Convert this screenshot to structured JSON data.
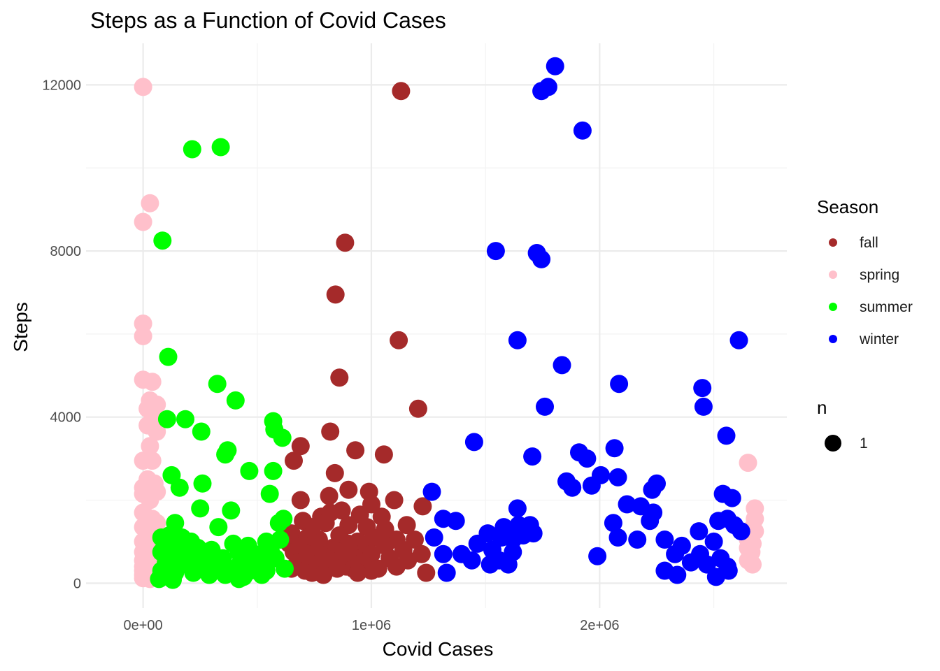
{
  "chart_data": {
    "type": "scatter",
    "title": "Steps as a Function of Covid Cases",
    "xlabel": "Covid Cases",
    "ylabel": "Steps",
    "xlim": [
      -250000,
      2820000
    ],
    "ylim": [
      -600,
      13000
    ],
    "x_ticks": [
      0,
      1000000,
      2000000
    ],
    "x_tick_labels": [
      "0e+00",
      "1e+06",
      "2e+06"
    ],
    "y_ticks": [
      0,
      4000,
      8000,
      12000
    ],
    "y_tick_labels": [
      "0",
      "4000",
      "8000",
      "12000"
    ],
    "grid": true,
    "legend": {
      "position": "right",
      "color_title": "Season",
      "size_title": "n",
      "size_entries": [
        "1"
      ]
    },
    "series": [
      {
        "name": "fall",
        "color": "#A52A2A",
        "points": [
          [
            1130000,
            11850
          ],
          [
            885000,
            8200
          ],
          [
            843000,
            6950
          ],
          [
            860000,
            4950
          ],
          [
            1120000,
            5850
          ],
          [
            1205000,
            4200
          ],
          [
            820000,
            3650
          ],
          [
            690000,
            3300
          ],
          [
            930000,
            3200
          ],
          [
            1055000,
            3100
          ],
          [
            660000,
            2950
          ],
          [
            840000,
            2650
          ],
          [
            815000,
            2100
          ],
          [
            900000,
            2250
          ],
          [
            990000,
            2200
          ],
          [
            1100000,
            2000
          ],
          [
            690000,
            2000
          ],
          [
            1225000,
            1850
          ],
          [
            780000,
            1600
          ],
          [
            820000,
            1700
          ],
          [
            870000,
            1750
          ],
          [
            950000,
            1650
          ],
          [
            1000000,
            1900
          ],
          [
            1045000,
            1600
          ],
          [
            1155000,
            1400
          ],
          [
            700000,
            1500
          ],
          [
            740000,
            1350
          ],
          [
            800000,
            1450
          ],
          [
            900000,
            1400
          ],
          [
            980000,
            1350
          ],
          [
            1060000,
            1300
          ],
          [
            650000,
            1200
          ],
          [
            720000,
            1100
          ],
          [
            770000,
            1050
          ],
          [
            860000,
            1150
          ],
          [
            940000,
            1000
          ],
          [
            1010000,
            1100
          ],
          [
            1110000,
            1050
          ],
          [
            1190000,
            1050
          ],
          [
            640000,
            950
          ],
          [
            700000,
            900
          ],
          [
            760000,
            950
          ],
          [
            830000,
            850
          ],
          [
            900000,
            950
          ],
          [
            980000,
            850
          ],
          [
            1060000,
            900
          ],
          [
            1140000,
            800
          ],
          [
            1220000,
            700
          ],
          [
            660000,
            750
          ],
          [
            720000,
            700
          ],
          [
            790000,
            650
          ],
          [
            860000,
            750
          ],
          [
            930000,
            600
          ],
          [
            1000000,
            700
          ],
          [
            1080000,
            600
          ],
          [
            1160000,
            550
          ],
          [
            680000,
            500
          ],
          [
            750000,
            450
          ],
          [
            820000,
            550
          ],
          [
            890000,
            400
          ],
          [
            960000,
            500
          ],
          [
            1030000,
            350
          ],
          [
            1110000,
            400
          ],
          [
            650000,
            350
          ],
          [
            710000,
            300
          ],
          [
            780000,
            300
          ],
          [
            850000,
            350
          ],
          [
            920000,
            350
          ],
          [
            1000000,
            300
          ],
          [
            1240000,
            250
          ],
          [
            740000,
            250
          ],
          [
            790000,
            200
          ],
          [
            940000,
            250
          ]
        ]
      },
      {
        "name": "spring",
        "color": "#FFC0CB",
        "points": [
          [
            0,
            11950
          ],
          [
            30000,
            9150
          ],
          [
            0,
            8700
          ],
          [
            0,
            6250
          ],
          [
            0,
            5950
          ],
          [
            0,
            4900
          ],
          [
            40000,
            4850
          ],
          [
            30000,
            4400
          ],
          [
            60000,
            4300
          ],
          [
            20000,
            4200
          ],
          [
            50000,
            4000
          ],
          [
            20000,
            3800
          ],
          [
            60000,
            3650
          ],
          [
            30000,
            3300
          ],
          [
            0,
            2950
          ],
          [
            40000,
            2950
          ],
          [
            20000,
            2500
          ],
          [
            50000,
            2400
          ],
          [
            0,
            2300
          ],
          [
            60000,
            2200
          ],
          [
            0,
            2150
          ],
          [
            30000,
            2000
          ],
          [
            0,
            1700
          ],
          [
            40000,
            1550
          ],
          [
            60000,
            1450
          ],
          [
            0,
            1350
          ],
          [
            30000,
            1250
          ],
          [
            50000,
            1100
          ],
          [
            0,
            1000
          ],
          [
            20000,
            900
          ],
          [
            60000,
            850
          ],
          [
            0,
            750
          ],
          [
            40000,
            650
          ],
          [
            0,
            550
          ],
          [
            30000,
            500
          ],
          [
            0,
            400
          ],
          [
            50000,
            400
          ],
          [
            0,
            300
          ],
          [
            20000,
            250
          ],
          [
            0,
            200
          ],
          [
            40000,
            200
          ],
          [
            0,
            120
          ],
          [
            30000,
            100
          ],
          [
            2650000,
            2900
          ],
          [
            2680000,
            1800
          ],
          [
            2680000,
            1550
          ],
          [
            2665000,
            1300
          ],
          [
            2680000,
            1250
          ],
          [
            2650000,
            1050
          ],
          [
            2670000,
            950
          ],
          [
            2650000,
            850
          ],
          [
            2665000,
            750
          ],
          [
            2650000,
            550
          ],
          [
            2670000,
            450
          ]
        ]
      },
      {
        "name": "summer",
        "color": "#00FF00",
        "points": [
          [
            340000,
            10500
          ],
          [
            215000,
            10450
          ],
          [
            85000,
            8250
          ],
          [
            110000,
            5450
          ],
          [
            325000,
            4800
          ],
          [
            405000,
            4400
          ],
          [
            570000,
            3900
          ],
          [
            185000,
            3950
          ],
          [
            105000,
            3950
          ],
          [
            575000,
            3700
          ],
          [
            255000,
            3650
          ],
          [
            610000,
            3500
          ],
          [
            370000,
            3200
          ],
          [
            360000,
            3100
          ],
          [
            125000,
            2600
          ],
          [
            465000,
            2700
          ],
          [
            570000,
            2700
          ],
          [
            160000,
            2300
          ],
          [
            260000,
            2400
          ],
          [
            555000,
            2150
          ],
          [
            250000,
            1800
          ],
          [
            385000,
            1750
          ],
          [
            615000,
            1550
          ],
          [
            595000,
            1450
          ],
          [
            140000,
            1450
          ],
          [
            330000,
            1350
          ],
          [
            80000,
            1100
          ],
          [
            115000,
            1150
          ],
          [
            170000,
            1100
          ],
          [
            210000,
            1000
          ],
          [
            395000,
            950
          ],
          [
            460000,
            900
          ],
          [
            540000,
            1000
          ],
          [
            600000,
            1050
          ],
          [
            130000,
            900
          ],
          [
            180000,
            800
          ],
          [
            240000,
            850
          ],
          [
            300000,
            800
          ],
          [
            420000,
            750
          ],
          [
            490000,
            700
          ],
          [
            560000,
            750
          ],
          [
            80000,
            750
          ],
          [
            150000,
            650
          ],
          [
            220000,
            600
          ],
          [
            280000,
            700
          ],
          [
            350000,
            600
          ],
          [
            430000,
            550
          ],
          [
            510000,
            500
          ],
          [
            580000,
            600
          ],
          [
            100000,
            500
          ],
          [
            170000,
            450
          ],
          [
            250000,
            400
          ],
          [
            320000,
            400
          ],
          [
            400000,
            350
          ],
          [
            470000,
            300
          ],
          [
            540000,
            300
          ],
          [
            620000,
            350
          ],
          [
            80000,
            300
          ],
          [
            140000,
            250
          ],
          [
            220000,
            250
          ],
          [
            290000,
            200
          ],
          [
            360000,
            200
          ],
          [
            440000,
            150
          ],
          [
            520000,
            200
          ],
          [
            70000,
            100
          ],
          [
            130000,
            80
          ],
          [
            420000,
            100
          ]
        ]
      },
      {
        "name": "winter",
        "color": "#0000FF",
        "points": [
          [
            1805000,
            12450
          ],
          [
            1775000,
            11950
          ],
          [
            1745000,
            11850
          ],
          [
            1925000,
            10900
          ],
          [
            1545000,
            8000
          ],
          [
            1725000,
            7950
          ],
          [
            1745000,
            7800
          ],
          [
            2610000,
            5850
          ],
          [
            1640000,
            5850
          ],
          [
            1835000,
            5250
          ],
          [
            2085000,
            4800
          ],
          [
            2450000,
            4700
          ],
          [
            1760000,
            4250
          ],
          [
            2455000,
            4250
          ],
          [
            2555000,
            3550
          ],
          [
            1450000,
            3400
          ],
          [
            2065000,
            3250
          ],
          [
            1705000,
            3050
          ],
          [
            1910000,
            3150
          ],
          [
            1945000,
            3000
          ],
          [
            2005000,
            2600
          ],
          [
            2080000,
            2550
          ],
          [
            1855000,
            2450
          ],
          [
            1880000,
            2300
          ],
          [
            1965000,
            2350
          ],
          [
            2250000,
            2400
          ],
          [
            2230000,
            2250
          ],
          [
            2540000,
            2150
          ],
          [
            2580000,
            2050
          ],
          [
            1265000,
            2200
          ],
          [
            2120000,
            1900
          ],
          [
            2180000,
            1850
          ],
          [
            1640000,
            1800
          ],
          [
            2235000,
            1700
          ],
          [
            1315000,
            1550
          ],
          [
            1370000,
            1500
          ],
          [
            2060000,
            1450
          ],
          [
            2220000,
            1500
          ],
          [
            2560000,
            1550
          ],
          [
            2520000,
            1500
          ],
          [
            1580000,
            1350
          ],
          [
            1645000,
            1400
          ],
          [
            1695000,
            1400
          ],
          [
            2590000,
            1400
          ],
          [
            1510000,
            1200
          ],
          [
            2435000,
            1250
          ],
          [
            2620000,
            1250
          ],
          [
            1275000,
            1100
          ],
          [
            1570000,
            1100
          ],
          [
            1620000,
            1050
          ],
          [
            1665000,
            1150
          ],
          [
            1710000,
            1200
          ],
          [
            2080000,
            1100
          ],
          [
            2165000,
            1050
          ],
          [
            2285000,
            1050
          ],
          [
            1465000,
            950
          ],
          [
            2360000,
            900
          ],
          [
            2500000,
            1000
          ],
          [
            1530000,
            800
          ],
          [
            1315000,
            700
          ],
          [
            1395000,
            700
          ],
          [
            1620000,
            750
          ],
          [
            2330000,
            700
          ],
          [
            2440000,
            700
          ],
          [
            2530000,
            600
          ],
          [
            1990000,
            650
          ],
          [
            1440000,
            550
          ],
          [
            1560000,
            550
          ],
          [
            2400000,
            500
          ],
          [
            1520000,
            450
          ],
          [
            1600000,
            450
          ],
          [
            2470000,
            450
          ],
          [
            2560000,
            400
          ],
          [
            2285000,
            300
          ],
          [
            2340000,
            200
          ],
          [
            1330000,
            250
          ],
          [
            2510000,
            150
          ],
          [
            2565000,
            300
          ]
        ]
      }
    ]
  }
}
